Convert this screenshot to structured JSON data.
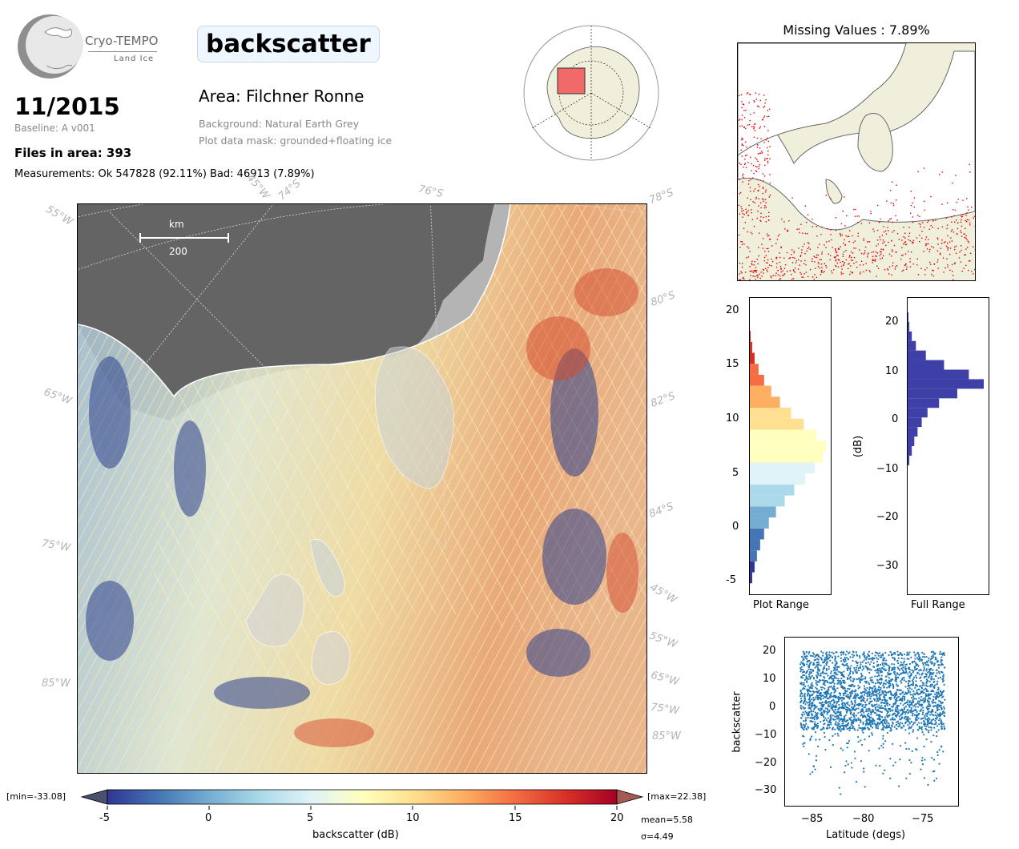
{
  "header": {
    "logo_name": "Cryo-TEMPO",
    "logo_sub": "Land Ice",
    "title": "backscatter",
    "date": "11/2015",
    "baseline": "Baseline: A v001",
    "files": "Files in area: 393",
    "measurements": "Measurements: Ok 547828 (92.11%) Bad: 46913 (7.89%)",
    "area": "Area: Filchner Ronne",
    "background": "Background: Natural Earth Grey",
    "mask": "Plot data mask: grounded+floating ice"
  },
  "main_map": {
    "scalebar_unit": "km",
    "scalebar_value": "200",
    "grid_labels": [
      "55°W",
      "45°W",
      "74°S",
      "76°S",
      "78°S",
      "80°S",
      "65°W",
      "82°S",
      "84°S",
      "75°W",
      "45°W",
      "55°W",
      "85°W",
      "65°W",
      "75°W",
      "85°W"
    ]
  },
  "colorbar": {
    "min_label": "[min=-33.08]",
    "max_label": "[max=22.38]",
    "ticks": [
      "-5",
      "0",
      "5",
      "10",
      "15",
      "20"
    ],
    "label": "backscatter (dB)",
    "mean": "mean=5.58",
    "sigma": "σ=4.49"
  },
  "missing": {
    "title": "Missing Values : 7.89%"
  },
  "hist_plot": {
    "xlabel": "Plot Range",
    "yticks": [
      "20",
      "15",
      "10",
      "5",
      "0",
      "-5"
    ]
  },
  "hist_full": {
    "xlabel": "Full Range",
    "ylabel": "(dB)",
    "yticks": [
      "20",
      "10",
      "0",
      "−10",
      "−20",
      "−30"
    ]
  },
  "scatter": {
    "xlabel": "Latitude (degs)",
    "ylabel": "backscatter",
    "xticks": [
      "−85",
      "−80",
      "−75"
    ],
    "yticks": [
      "20",
      "10",
      "0",
      "−10",
      "−20",
      "−30"
    ]
  },
  "chart_data": [
    {
      "type": "heatmap",
      "title": "backscatter",
      "colorbar_range": [
        -5,
        20
      ],
      "colormap": [
        "#313695",
        "#4575b4",
        "#74add1",
        "#abd9e9",
        "#e0f3f8",
        "#ffffbf",
        "#fee090",
        "#fdae61",
        "#f46d43",
        "#d73027",
        "#a50026"
      ]
    },
    {
      "type": "bar",
      "title": "Plot Range",
      "orientation": "horizontal",
      "ylim": [
        -6,
        21
      ],
      "bins": [
        -5,
        -4,
        -3,
        -2,
        -1,
        0,
        1,
        2,
        3,
        4,
        5,
        6,
        7,
        8,
        9,
        10,
        11,
        12,
        13,
        14,
        15,
        16,
        17
      ],
      "counts": [
        3,
        6,
        9,
        13,
        18,
        24,
        33,
        44,
        56,
        70,
        82,
        92,
        96,
        84,
        68,
        52,
        38,
        27,
        18,
        11,
        6,
        3,
        1
      ]
    },
    {
      "type": "bar",
      "title": "Full Range",
      "orientation": "horizontal",
      "ylim": [
        -37,
        25
      ],
      "bins": [
        -10,
        -8,
        -6,
        -4,
        -2,
        0,
        2,
        4,
        6,
        8,
        10,
        12,
        14,
        16,
        18,
        20
      ],
      "counts": [
        2,
        5,
        8,
        12,
        17,
        24,
        38,
        60,
        92,
        74,
        44,
        22,
        10,
        5,
        2,
        1
      ]
    },
    {
      "type": "scatter",
      "xlabel": "Latitude (degs)",
      "ylabel": "backscatter",
      "xlim": [
        -88,
        -71
      ],
      "ylim": [
        -35,
        25
      ],
      "x_range": [
        -86.5,
        -72.3
      ],
      "y_center": 6,
      "y_upper": 20,
      "y_lower": -33
    }
  ]
}
